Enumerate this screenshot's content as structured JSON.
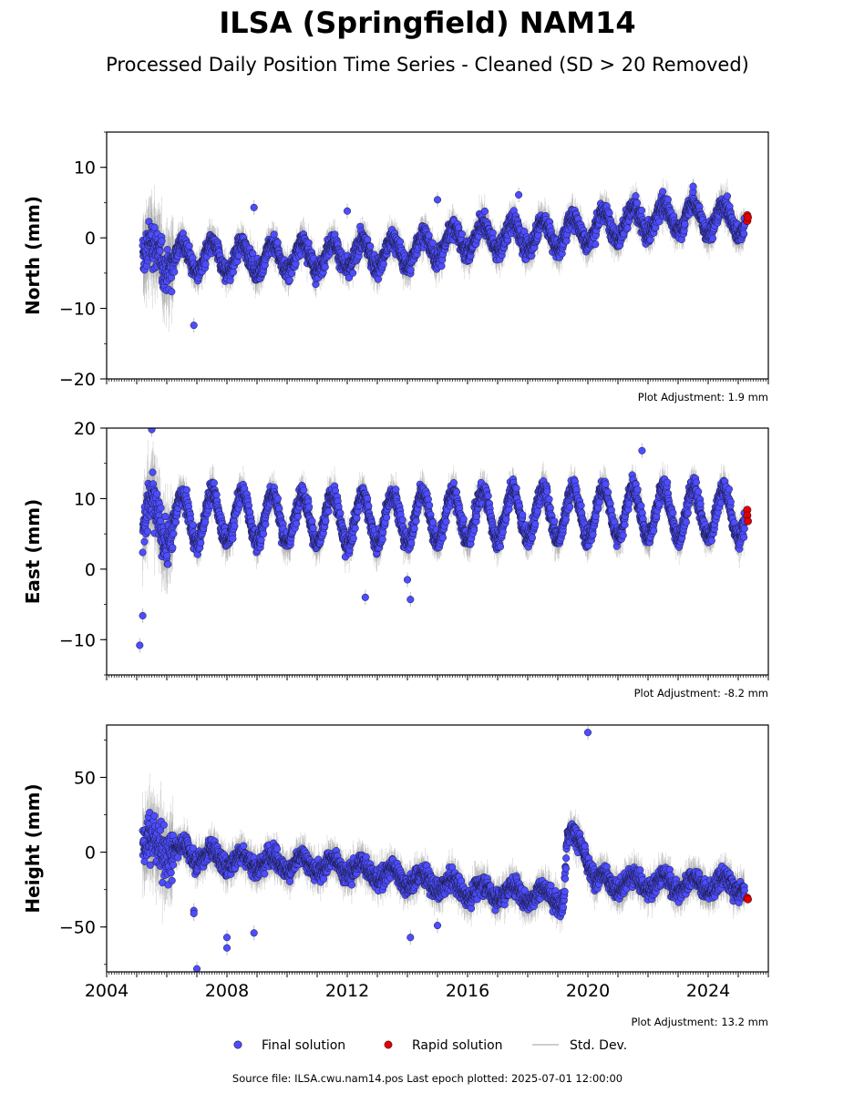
{
  "title": "ILSA (Springfield) NAM14",
  "subtitle": "Processed Daily Position Time Series - Cleaned (SD > 20 Removed)",
  "footer": "Source file: ILSA.cwu.nam14.pos  Last epoch plotted: 2025-07-01 12:00:00",
  "legend": {
    "final": "Final solution",
    "rapid": "Rapid solution",
    "std": "Std. Dev."
  },
  "colors": {
    "final_fill": "#4d4dff",
    "final_edge": "#1a1a40",
    "rapid": "#e00000",
    "std": "#808080"
  },
  "chart_data": [
    {
      "type": "scatter",
      "ylabel": "North (mm)",
      "adjustment": "Plot Adjustment: 1.9 mm",
      "xlim": [
        2004,
        2026
      ],
      "ylim": [
        -20,
        15
      ],
      "yticks": [
        10,
        0,
        -10,
        -20
      ],
      "ytick_labels": [
        "10",
        "0",
        "−10",
        "−20"
      ],
      "xtick_labels_shown": false,
      "trend": {
        "x": [
          2005.2,
          2008,
          2012,
          2014,
          2016,
          2019,
          2021,
          2023,
          2025.2
        ],
        "y": [
          -2.5,
          -3.0,
          -2.5,
          -2.0,
          0.0,
          0.5,
          2.0,
          3.0,
          2.5
        ]
      },
      "seasonal_amplitude": 2.0,
      "outliers": [
        [
          2006.9,
          -12.4
        ],
        [
          2008.9,
          4.3
        ],
        [
          2012,
          3.8
        ],
        [
          2017.7,
          6.1
        ],
        [
          2023.5,
          7.3
        ],
        [
          2015,
          5.4
        ]
      ],
      "rapid_points": [
        [
          2025.3,
          3.2
        ],
        [
          2025.3,
          2.4
        ],
        [
          2025.32,
          2.9
        ]
      ]
    },
    {
      "type": "scatter",
      "ylabel": "East (mm)",
      "adjustment": "Plot Adjustment: -8.2 mm",
      "xlim": [
        2004,
        2026
      ],
      "ylim": [
        -15,
        20
      ],
      "yticks": [
        20,
        10,
        0,
        -10
      ],
      "ytick_labels": [
        "20",
        "10",
        "0",
        "−10"
      ],
      "xtick_labels_shown": false,
      "trend": {
        "x": [
          2005.2,
          2008,
          2012,
          2016,
          2020,
          2025.2
        ],
        "y": [
          6.5,
          7.5,
          7.0,
          7.5,
          8.0,
          8.0
        ]
      },
      "seasonal_amplitude": 3.5,
      "outliers": [
        [
          2005.1,
          -10.8
        ],
        [
          2005.2,
          -6.6
        ],
        [
          2005.5,
          19.8
        ],
        [
          2012.6,
          -4.0
        ],
        [
          2014.1,
          -4.3
        ],
        [
          2014.0,
          -1.5
        ],
        [
          2021.8,
          16.8
        ]
      ],
      "rapid_points": [
        [
          2025.3,
          8.4
        ],
        [
          2025.3,
          7.6
        ],
        [
          2025.32,
          6.8
        ]
      ]
    },
    {
      "type": "scatter",
      "ylabel": "Height (mm)",
      "adjustment": "Plot Adjustment: 13.2 mm",
      "xlim": [
        2004,
        2026
      ],
      "ylim": [
        -80,
        85
      ],
      "yticks": [
        50,
        0,
        -50
      ],
      "ytick_labels": [
        "50",
        "0",
        "−50"
      ],
      "xtick_labels_shown": true,
      "xticks": [
        2004,
        2008,
        2012,
        2016,
        2020,
        2024
      ],
      "trend": {
        "x": [
          2005.2,
          2008,
          2012,
          2016,
          2019.2,
          2019.3,
          2019.8,
          2020.3,
          2025.2
        ],
        "y": [
          5.0,
          -5.0,
          -10.0,
          -25.0,
          -30.0,
          10.0,
          5.0,
          -20.0,
          -22.0
        ]
      },
      "seasonal_amplitude": 5.0,
      "outliers": [
        [
          2006.9,
          -39
        ],
        [
          2006.9,
          -41
        ],
        [
          2007.0,
          -78
        ],
        [
          2008,
          -57
        ],
        [
          2008,
          -64
        ],
        [
          2008.9,
          -54
        ],
        [
          2014.1,
          -57
        ],
        [
          2015.0,
          -49
        ],
        [
          2020.0,
          80
        ],
        [
          2019.9,
          4
        ]
      ],
      "rapid_points": [
        [
          2025.3,
          -30.5
        ],
        [
          2025.32,
          -31.5
        ]
      ]
    }
  ]
}
